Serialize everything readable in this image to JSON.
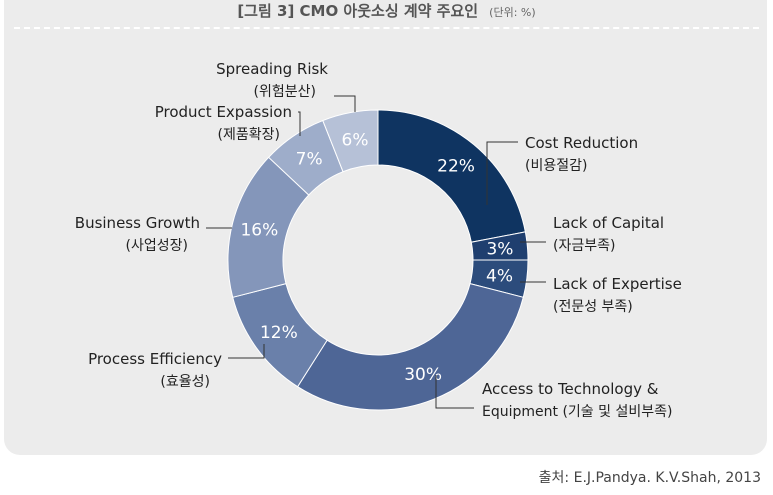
{
  "title": "[그림 3] CMO 아웃소싱 계약 주요인",
  "unit": "(단위: %)",
  "source": "출처: E.J.Pandya. K.V.Shah, 2013",
  "chart_data": {
    "type": "pie",
    "style": "donut",
    "slices": [
      {
        "label": "Cost Reduction",
        "sublabel": "(비용절감)",
        "value": 22,
        "value_label": "22%",
        "color": "#0f3461"
      },
      {
        "label": "Lack of Capital",
        "sublabel": "(자금부족)",
        "value": 3,
        "value_label": "3%",
        "color": "#1f3f6f"
      },
      {
        "label": "Lack of Expertise",
        "sublabel": "(전문성 부족)",
        "value": 4,
        "value_label": "4%",
        "color": "#2c4c7c"
      },
      {
        "label": "Access to Technology &",
        "sublabel": "Equipment (기술 및 설비부족)",
        "value": 30,
        "value_label": "30%",
        "color": "#4e6696"
      },
      {
        "label": "Process Efficiency",
        "sublabel": "(효율성)",
        "value": 12,
        "value_label": "12%",
        "color": "#6a80aa"
      },
      {
        "label": "Business Growth",
        "sublabel": "(사업성장)",
        "value": 16,
        "value_label": "16%",
        "color": "#8496ba"
      },
      {
        "label": "Product Expassion",
        "sublabel": "(제품확장)",
        "value": 7,
        "value_label": "7%",
        "color": "#9eadca"
      },
      {
        "label": "Spreading Risk",
        "sublabel": "(위험분산)",
        "value": 6,
        "value_label": "6%",
        "color": "#b6c1d7"
      }
    ]
  }
}
